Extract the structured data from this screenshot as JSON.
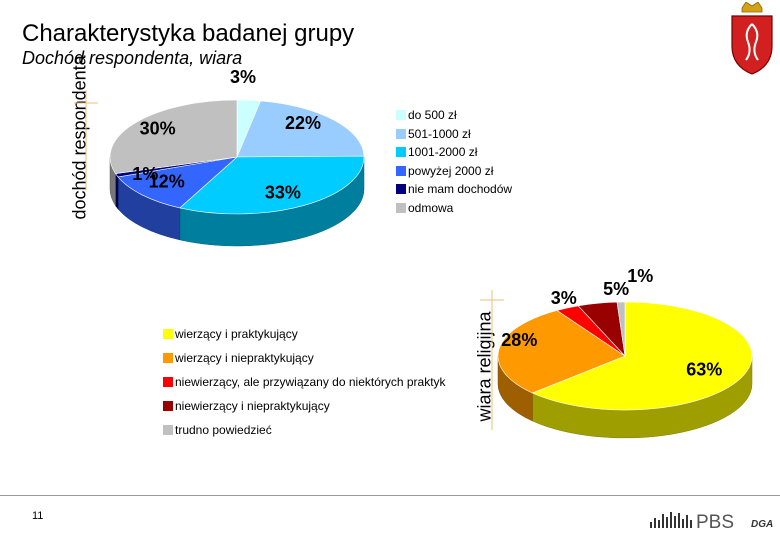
{
  "header": {
    "title": "Charakterystyka badanej grupy",
    "subtitle": "Dochód respondenta, wiara"
  },
  "footer": {
    "page_number": "11",
    "logo_text": "PBS",
    "logo_subtext": "DGA"
  },
  "colors": {
    "light_cyan": "#ccffff",
    "sky_blue": "#99ccff",
    "cyan": "#00ccff",
    "blue": "#3366ff",
    "navy": "#000080",
    "gray": "#c0c0c0",
    "yellow": "#ffff00",
    "orange": "#ff9900",
    "red": "#ff0000",
    "dark_red": "#990000",
    "light_gray": "#c0c0c0"
  },
  "chart_data": [
    {
      "type": "pie",
      "ylabel": "dochód respondenta",
      "legend_position": "right",
      "labels": [
        "do 500 zł",
        "501-1000 zł",
        "1001-2000 zł",
        "powyżej 2000 zł",
        "nie mam dochodów",
        "odmowa"
      ],
      "values": [
        3,
        22,
        33,
        12,
        1,
        30
      ],
      "value_labels": [
        "3%",
        "22%",
        "33%",
        "12%",
        "1%",
        "30%"
      ],
      "colors": [
        "#ccffff",
        "#99ccff",
        "#00ccff",
        "#3366ff",
        "#000080",
        "#c0c0c0"
      ],
      "three_d": true
    },
    {
      "type": "pie",
      "ylabel": "wiara religijna",
      "legend_position": "left",
      "labels": [
        "wierzący i praktykujący",
        "wierzący i niepraktykujący",
        "niewierzący, ale przywiązany do niektórych praktyk",
        "niewierzący i niepraktykujący",
        "trudno powiedzieć"
      ],
      "values": [
        63,
        28,
        3,
        5,
        1
      ],
      "value_labels": [
        "63%",
        "28%",
        "3%",
        "5%",
        "1%"
      ],
      "colors": [
        "#ffff00",
        "#ff9900",
        "#ff0000",
        "#990000",
        "#c0c0c0"
      ],
      "three_d": true
    }
  ]
}
